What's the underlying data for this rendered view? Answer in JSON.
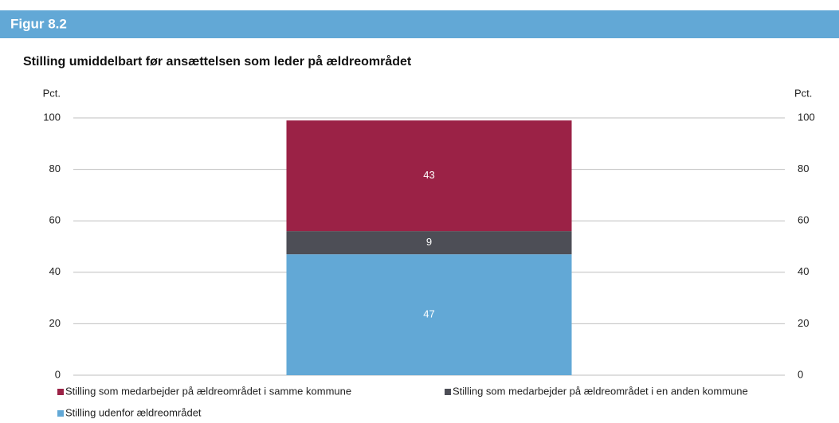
{
  "chart_data": {
    "type": "stacked_bar",
    "figure_label": "Figur 8.2",
    "title": "Stilling umiddelbart før ansættelsen som leder på ældreområdet",
    "ylabel": "Pct.",
    "y2label": "Pct.",
    "categories": [
      null
    ],
    "series": [
      {
        "name": "Stilling udenfor ældreområdet",
        "color": "#62a8d6",
        "values": [
          47
        ]
      },
      {
        "name": "Stilling som medarbejder på ældreområdet i en anden kommune",
        "color": "#4d4e56",
        "values": [
          9
        ]
      },
      {
        "name": "Stilling som medarbejder på ældreområdet i samme kommune",
        "color": "#9b2246",
        "values": [
          43
        ]
      }
    ],
    "ylim": [
      0,
      100
    ],
    "yticks": [
      0,
      20,
      40,
      60,
      80,
      100
    ],
    "y2lim": [
      0,
      100
    ],
    "y2ticks": [
      0,
      20,
      40,
      60,
      80,
      100
    ],
    "grid": true
  }
}
